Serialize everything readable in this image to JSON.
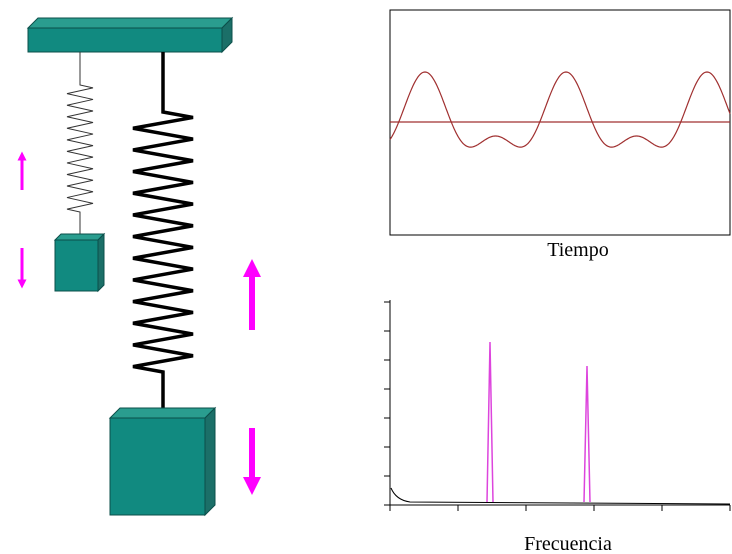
{
  "time_plot": {
    "label": "Tiempo"
  },
  "frequency_plot": {
    "label": "Frecuencia"
  }
}
